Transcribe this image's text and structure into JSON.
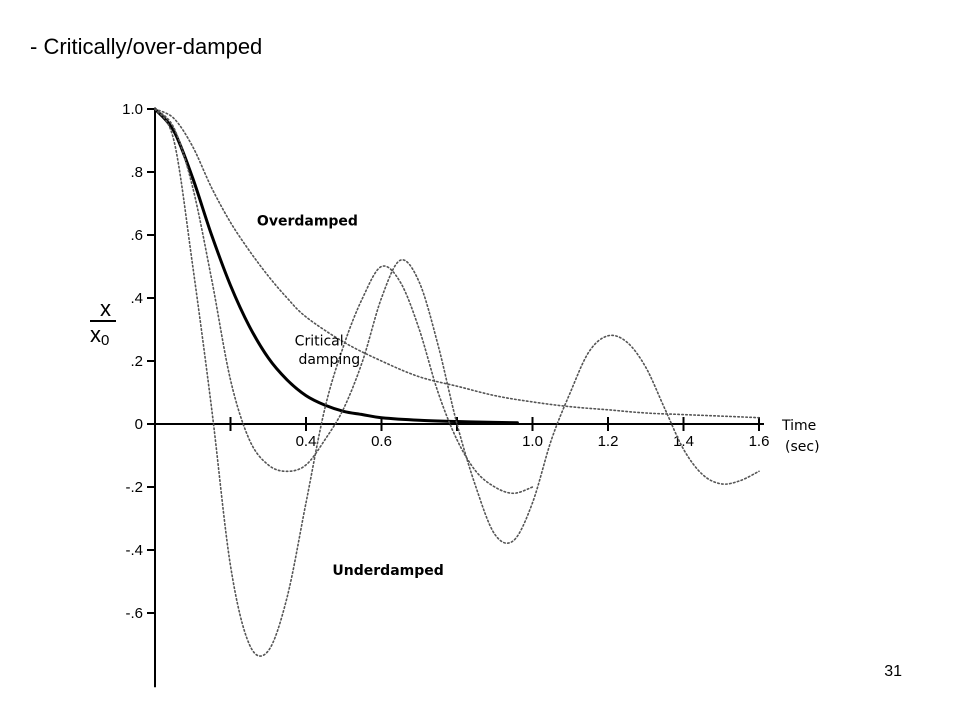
{
  "slide": {
    "title": "- Critically/over-damped",
    "page_number": "31"
  },
  "chart_data": {
    "type": "line",
    "ylabel_numerator": "x",
    "ylabel_denominator": "x",
    "ylabel_denominator_subscript": "0",
    "xlabel_line1": "Time",
    "xlabel_line2": "(sec)",
    "xlim": [
      0,
      1.6
    ],
    "ylim": [
      -0.75,
      1.0
    ],
    "x_ticks": [
      {
        "v": 0.4,
        "label": "0.4"
      },
      {
        "v": 0.6,
        "label": "0.6"
      },
      {
        "v": 1.0,
        "label": "1.0"
      },
      {
        "v": 1.2,
        "label": "1.2"
      },
      {
        "v": 1.4,
        "label": "1.4"
      },
      {
        "v": 1.6,
        "label": "1.6"
      }
    ],
    "y_ticks": [
      {
        "v": 1.0,
        "label": "1.0"
      },
      {
        "v": 0.8,
        "label": ".8"
      },
      {
        "v": 0.6,
        "label": ".6"
      },
      {
        "v": 0.4,
        "label": ".4"
      },
      {
        "v": 0.2,
        "label": ".2"
      },
      {
        "v": 0.0,
        "label": "0"
      },
      {
        "v": -0.2,
        "label": "-.2"
      },
      {
        "v": -0.4,
        "label": "-.4"
      },
      {
        "v": -0.6,
        "label": "-.6"
      }
    ],
    "series": [
      {
        "name": "Critical damping",
        "style": "solid",
        "x": [
          0,
          0.05,
          0.1,
          0.15,
          0.2,
          0.25,
          0.3,
          0.35,
          0.4,
          0.45,
          0.5,
          0.55,
          0.6,
          0.7,
          0.8,
          0.9,
          0.96
        ],
        "y": [
          1.0,
          0.93,
          0.78,
          0.6,
          0.44,
          0.31,
          0.21,
          0.14,
          0.09,
          0.06,
          0.04,
          0.03,
          0.02,
          0.012,
          0.008,
          0.005,
          0.004
        ]
      },
      {
        "name": "Overdamped",
        "style": "dotted",
        "x": [
          0,
          0.05,
          0.1,
          0.15,
          0.2,
          0.25,
          0.3,
          0.35,
          0.4,
          0.5,
          0.6,
          0.7,
          0.8,
          0.9,
          1.0,
          1.1,
          1.2,
          1.3,
          1.4,
          1.5,
          1.6
        ],
        "y": [
          1.0,
          0.97,
          0.88,
          0.75,
          0.64,
          0.55,
          0.47,
          0.4,
          0.34,
          0.26,
          0.2,
          0.15,
          0.12,
          0.09,
          0.07,
          0.055,
          0.045,
          0.035,
          0.03,
          0.025,
          0.02
        ]
      },
      {
        "name": "Underdamped",
        "style": "dotted",
        "x": [
          0,
          0.05,
          0.1,
          0.15,
          0.2,
          0.25,
          0.3,
          0.35,
          0.4,
          0.45,
          0.5,
          0.55,
          0.6,
          0.65,
          0.7,
          0.75,
          0.8,
          0.85,
          0.9,
          0.95,
          1.0,
          1.05,
          1.1,
          1.15,
          1.2,
          1.25,
          1.3,
          1.35,
          1.4,
          1.45,
          1.5,
          1.55,
          1.6
        ],
        "y": [
          1.0,
          0.94,
          0.75,
          0.46,
          0.14,
          -0.05,
          -0.13,
          -0.15,
          -0.13,
          -0.05,
          0.05,
          0.2,
          0.4,
          0.52,
          0.45,
          0.25,
          0.0,
          -0.2,
          -0.35,
          -0.37,
          -0.25,
          -0.05,
          0.1,
          0.23,
          0.28,
          0.26,
          0.18,
          0.05,
          -0.08,
          -0.16,
          -0.19,
          -0.18,
          -0.15
        ]
      },
      {
        "name": "Underdamped",
        "style": "dotted",
        "x": [
          0,
          0.05,
          0.1,
          0.15,
          0.2,
          0.25,
          0.3,
          0.35,
          0.4,
          0.45,
          0.5,
          0.55,
          0.6,
          0.65,
          0.7,
          0.75,
          0.8,
          0.85,
          0.9,
          0.95,
          1.0
        ],
        "y": [
          1.0,
          0.9,
          0.5,
          0.05,
          -0.45,
          -0.7,
          -0.72,
          -0.55,
          -0.25,
          0.05,
          0.25,
          0.4,
          0.5,
          0.45,
          0.3,
          0.1,
          -0.05,
          -0.15,
          -0.2,
          -0.22,
          -0.2
        ]
      }
    ],
    "annotations": [
      {
        "text": "Overdamped",
        "bold": true,
        "x": 0.27,
        "y": 0.63
      },
      {
        "text": "Critical",
        "bold": false,
        "x": 0.37,
        "y": 0.25
      },
      {
        "text": "damping",
        "bold": false,
        "x": 0.38,
        "y": 0.19
      },
      {
        "text": "Underdamped",
        "bold": true,
        "x": 0.47,
        "y": -0.48
      }
    ]
  }
}
